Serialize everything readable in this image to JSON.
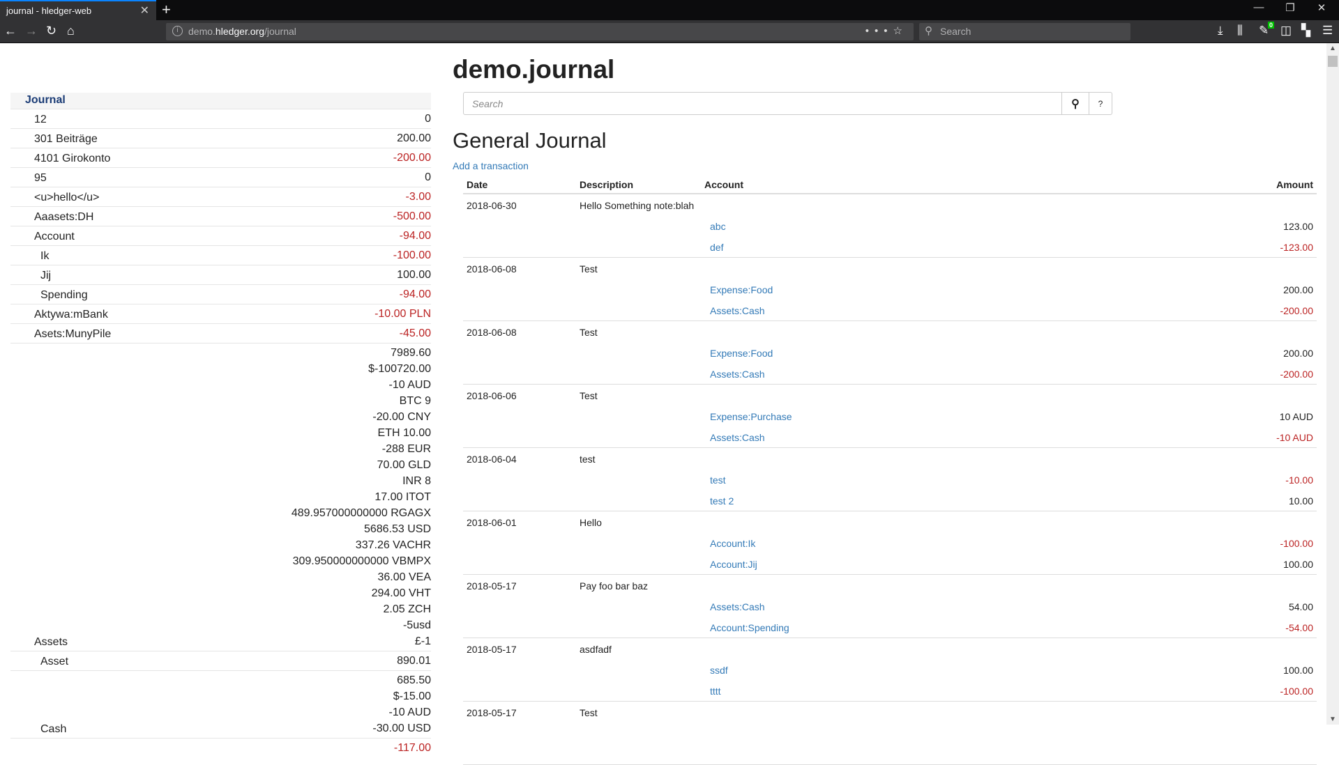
{
  "browser": {
    "tab_title": "journal - hledger-web",
    "url_prefix": "demo.",
    "url_host": "hledger.org",
    "url_path": "/journal",
    "search_placeholder": "Search",
    "badge_count": "0"
  },
  "sidebar": {
    "heading": "Journal",
    "rows": [
      {
        "label": "12",
        "level": 1,
        "amounts": [
          "0"
        ]
      },
      {
        "label": "301 Beiträge",
        "level": 1,
        "amounts": [
          "200.00"
        ]
      },
      {
        "label": "4101 Girokonto",
        "level": 1,
        "amounts": [
          "-200.00"
        ]
      },
      {
        "label": "95",
        "level": 1,
        "amounts": [
          "0"
        ]
      },
      {
        "label": "<u>hello</u>",
        "level": 1,
        "amounts": [
          "-3.00"
        ]
      },
      {
        "label": "Aaasets:DH",
        "level": 1,
        "amounts": [
          "-500.00"
        ]
      },
      {
        "label": "Account",
        "level": 1,
        "amounts": [
          "-94.00"
        ]
      },
      {
        "label": "Ik",
        "level": 2,
        "amounts": [
          "-100.00"
        ]
      },
      {
        "label": "Jij",
        "level": 2,
        "amounts": [
          "100.00"
        ]
      },
      {
        "label": "Spending",
        "level": 2,
        "amounts": [
          "-94.00"
        ]
      },
      {
        "label": "Aktywa:mBank",
        "level": 1,
        "amounts": [
          "-10.00 PLN"
        ]
      },
      {
        "label": "Asets:MunyPile",
        "level": 1,
        "amounts": [
          "-45.00"
        ]
      },
      {
        "label": "Assets",
        "level": 1,
        "amounts": [
          "7989.60",
          "$-100720.00",
          "-10 AUD",
          "BTC 9",
          "-20.00 CNY",
          "ETH 10.00",
          "-288 EUR",
          "70.00 GLD",
          "INR 8",
          "17.00 ITOT",
          "489.957000000000 RGAGX",
          "5686.53 USD",
          "337.26 VACHR",
          "309.950000000000 VBMPX",
          "36.00 VEA",
          "294.00 VHT",
          "2.05 ZCH",
          "-5usd",
          "£-1"
        ]
      },
      {
        "label": "Asset",
        "level": 2,
        "amounts": [
          "890.01"
        ]
      },
      {
        "label": "Cash",
        "level": 2,
        "amounts": [
          "685.50",
          "$-15.00",
          "-10 AUD",
          "-30.00 USD"
        ]
      },
      {
        "label": "",
        "level": 2,
        "amounts": [
          "-117.00"
        ]
      }
    ]
  },
  "main": {
    "title": "demo.journal",
    "search_placeholder": "Search",
    "help_label": "?",
    "section_title": "General Journal",
    "add_transaction": "Add a transaction",
    "columns": {
      "date": "Date",
      "description": "Description",
      "account": "Account",
      "amount": "Amount"
    },
    "transactions": [
      {
        "date": "2018-06-30",
        "description": "Hello Something note:blah",
        "postings": [
          {
            "account": "abc",
            "amount": "123.00"
          },
          {
            "account": "def",
            "amount": "-123.00"
          }
        ]
      },
      {
        "date": "2018-06-08",
        "description": "Test",
        "postings": [
          {
            "account": "Expense:Food",
            "amount": "200.00"
          },
          {
            "account": "Assets:Cash",
            "amount": "-200.00"
          }
        ]
      },
      {
        "date": "2018-06-08",
        "description": "Test",
        "postings": [
          {
            "account": "Expense:Food",
            "amount": "200.00"
          },
          {
            "account": "Assets:Cash",
            "amount": "-200.00"
          }
        ]
      },
      {
        "date": "2018-06-06",
        "description": "Test",
        "postings": [
          {
            "account": "Expense:Purchase",
            "amount": "10 AUD"
          },
          {
            "account": "Assets:Cash",
            "amount": "-10 AUD"
          }
        ]
      },
      {
        "date": "2018-06-04",
        "description": "test",
        "postings": [
          {
            "account": "test",
            "amount": "-10.00"
          },
          {
            "account": "test 2",
            "amount": "10.00"
          }
        ]
      },
      {
        "date": "2018-06-01",
        "description": "Hello",
        "postings": [
          {
            "account": "Account:Ik",
            "amount": "-100.00"
          },
          {
            "account": "Account:Jij",
            "amount": "100.00"
          }
        ]
      },
      {
        "date": "2018-05-17",
        "description": "Pay foo bar baz",
        "postings": [
          {
            "account": "Assets:Cash",
            "amount": "54.00"
          },
          {
            "account": "Account:Spending",
            "amount": "-54.00"
          }
        ]
      },
      {
        "date": "2018-05-17",
        "description": "asdfadf",
        "postings": [
          {
            "account": "ssdf",
            "amount": "100.00"
          },
          {
            "account": "tttt",
            "amount": "-100.00"
          }
        ]
      },
      {
        "date": "2018-05-17",
        "description": "Test",
        "postings": []
      }
    ]
  },
  "colors": {
    "link": "#337ab7",
    "negative": "#bb2222",
    "heading": "#1a3b75",
    "tab_accent": "#0a84ff"
  }
}
